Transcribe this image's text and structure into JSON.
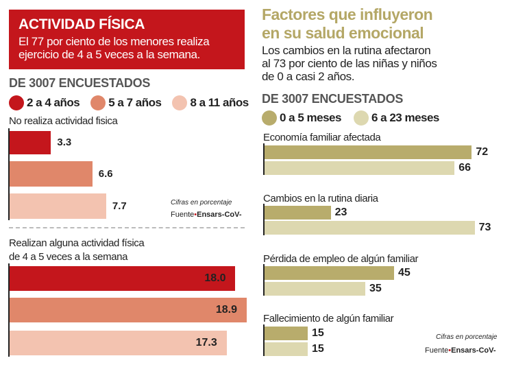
{
  "left": {
    "title": "ACTIVIDAD FÍSICA",
    "subtitle_line1": "El 77 por ciento de los menores realiza",
    "subtitle_line2": "ejercicio de 4 a 5 veces a la semana.",
    "sample": "DE 3007 ENCUESTADOS",
    "note": "Cifras en porcentaje",
    "source_label": "Fuente",
    "source_name": "Ensars-CoV-"
  },
  "right": {
    "title_line1": "Factores que influyeron",
    "title_line2": "en su salud emocional",
    "desc_line1": "Los cambios en la rutina afectaron",
    "desc_line2": "al 73 por ciento de las niñas y niños",
    "desc_line3": "de 0 a casi 2 años.",
    "sample": "DE 3007 ENCUESTADOS",
    "note": "Cifras en porcentaje",
    "source_label": "Fuente",
    "source_name": "Ensars-CoV-"
  },
  "chart_data": [
    {
      "type": "bar",
      "orientation": "horizontal",
      "title": "ACTIVIDAD FÍSICA",
      "unit": "%",
      "legend": [
        "2 a 4 años",
        "5 a 7 años",
        "8 a 11 años"
      ],
      "colors": [
        "#c4161c",
        "#e0876a",
        "#f3c3b0"
      ],
      "categories": [
        "No realiza actividad fisica",
        "Realizan alguna actividad física de 4 a 5 veces a la semana"
      ],
      "category_lines": [
        [
          "No realiza actividad fisica"
        ],
        [
          "Realizan alguna actividad física",
          "de 4 a 5 veces a la semana"
        ]
      ],
      "series": [
        {
          "name": "2 a 4 años",
          "values": [
            3.3,
            18.0
          ]
        },
        {
          "name": "5 a 7 años",
          "values": [
            6.6,
            18.9
          ]
        },
        {
          "name": "8 a 11 años",
          "values": [
            7.7,
            17.3
          ]
        }
      ],
      "labels": [
        [
          "3.3",
          "6.6",
          "7.7"
        ],
        [
          "18.0",
          "18.9",
          "17.3"
        ]
      ]
    },
    {
      "type": "bar",
      "orientation": "horizontal",
      "title": "Factores que influyeron en su salud emocional",
      "unit": "%",
      "legend": [
        "0 a 5 meses",
        "6 a 23 meses"
      ],
      "colors": [
        "#b8ac6c",
        "#ddd8b0"
      ],
      "categories": [
        "Economía familiar afectada",
        "Cambios en la rutina diaria",
        "Pérdida de empleo de algún familiar",
        "Fallecimiento de algún familiar"
      ],
      "series": [
        {
          "name": "0 a 5 meses",
          "values": [
            72,
            23,
            45,
            15
          ]
        },
        {
          "name": "6 a 23 meses",
          "values": [
            66,
            73,
            35,
            15
          ]
        }
      ]
    }
  ]
}
